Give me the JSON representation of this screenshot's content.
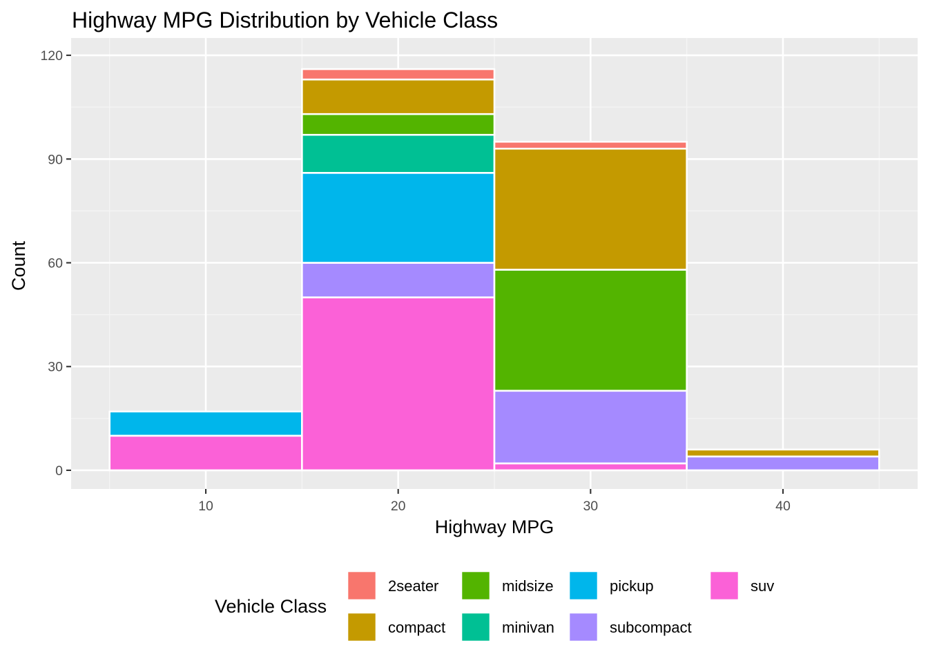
{
  "chart_data": {
    "type": "bar",
    "subtype": "stacked-histogram",
    "title": "Highway MPG Distribution by Vehicle Class",
    "xlabel": "Highway MPG",
    "ylabel": "Count",
    "xlim": [
      3,
      47
    ],
    "ylim": [
      -5.4,
      125
    ],
    "x_ticks": [
      10,
      20,
      30,
      40
    ],
    "y_ticks": [
      0,
      30,
      60,
      90,
      120
    ],
    "bin_width": 10,
    "bins": [
      {
        "range": [
          5,
          15
        ],
        "center": 10
      },
      {
        "range": [
          15,
          25
        ],
        "center": 20
      },
      {
        "range": [
          25,
          35
        ],
        "center": 30
      },
      {
        "range": [
          35,
          45
        ],
        "center": 40
      }
    ],
    "stack_order_bottom_to_top": [
      "suv",
      "subcompact",
      "pickup",
      "minivan",
      "midsize",
      "compact",
      "2seater"
    ],
    "series": [
      {
        "name": "2seater",
        "color": "#F8766D",
        "values": [
          0,
          3,
          2,
          0
        ]
      },
      {
        "name": "compact",
        "color": "#C49A00",
        "values": [
          0,
          10,
          35,
          2
        ]
      },
      {
        "name": "midsize",
        "color": "#53B400",
        "values": [
          0,
          6,
          35,
          0
        ]
      },
      {
        "name": "minivan",
        "color": "#00C094",
        "values": [
          0,
          11,
          0,
          0
        ]
      },
      {
        "name": "pickup",
        "color": "#00B6EB",
        "values": [
          7,
          26,
          0,
          0
        ]
      },
      {
        "name": "subcompact",
        "color": "#A58AFF",
        "values": [
          0,
          10,
          21,
          4
        ]
      },
      {
        "name": "suv",
        "color": "#FB61D7",
        "values": [
          10,
          50,
          2,
          0
        ]
      }
    ],
    "legend": {
      "title": "Vehicle Class",
      "position": "bottom",
      "rows": [
        [
          "2seater",
          "midsize",
          "pickup",
          "suv"
        ],
        [
          "compact",
          "minivan",
          "subcompact"
        ]
      ]
    },
    "colors": {
      "panel_background": "#EBEBEB",
      "grid_major": "#FFFFFF",
      "grid_minor": "#F5F5F5",
      "bar_outline": "#FFFFFF"
    }
  }
}
